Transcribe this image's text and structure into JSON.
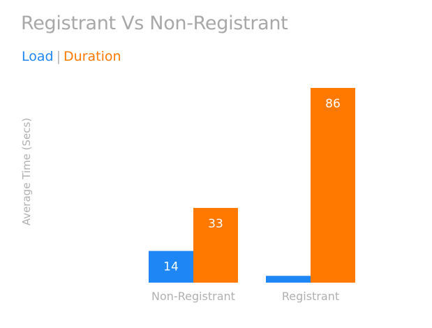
{
  "chart_data": {
    "type": "bar",
    "title": "Registrant Vs Non-Registrant",
    "xlabel": "",
    "ylabel": "Average Time (Secs)",
    "categories": [
      "Non-Registrant",
      "Registrant"
    ],
    "series": [
      {
        "name": "Load",
        "color": "#1e86f5",
        "values": [
          14,
          3
        ]
      },
      {
        "name": "Duration",
        "color": "#ff7800",
        "values": [
          33,
          86
        ]
      }
    ],
    "data_labels": [
      [
        "14",
        ""
      ],
      [
        "33",
        "86"
      ]
    ],
    "legend_separator": "|",
    "legend_position": "top-left",
    "ylim": [
      0,
      86
    ],
    "grid": false
  },
  "colors": {
    "title": "#a8a8a8",
    "axis_text": "#b0b0b0",
    "data_label": "#ffffff"
  }
}
